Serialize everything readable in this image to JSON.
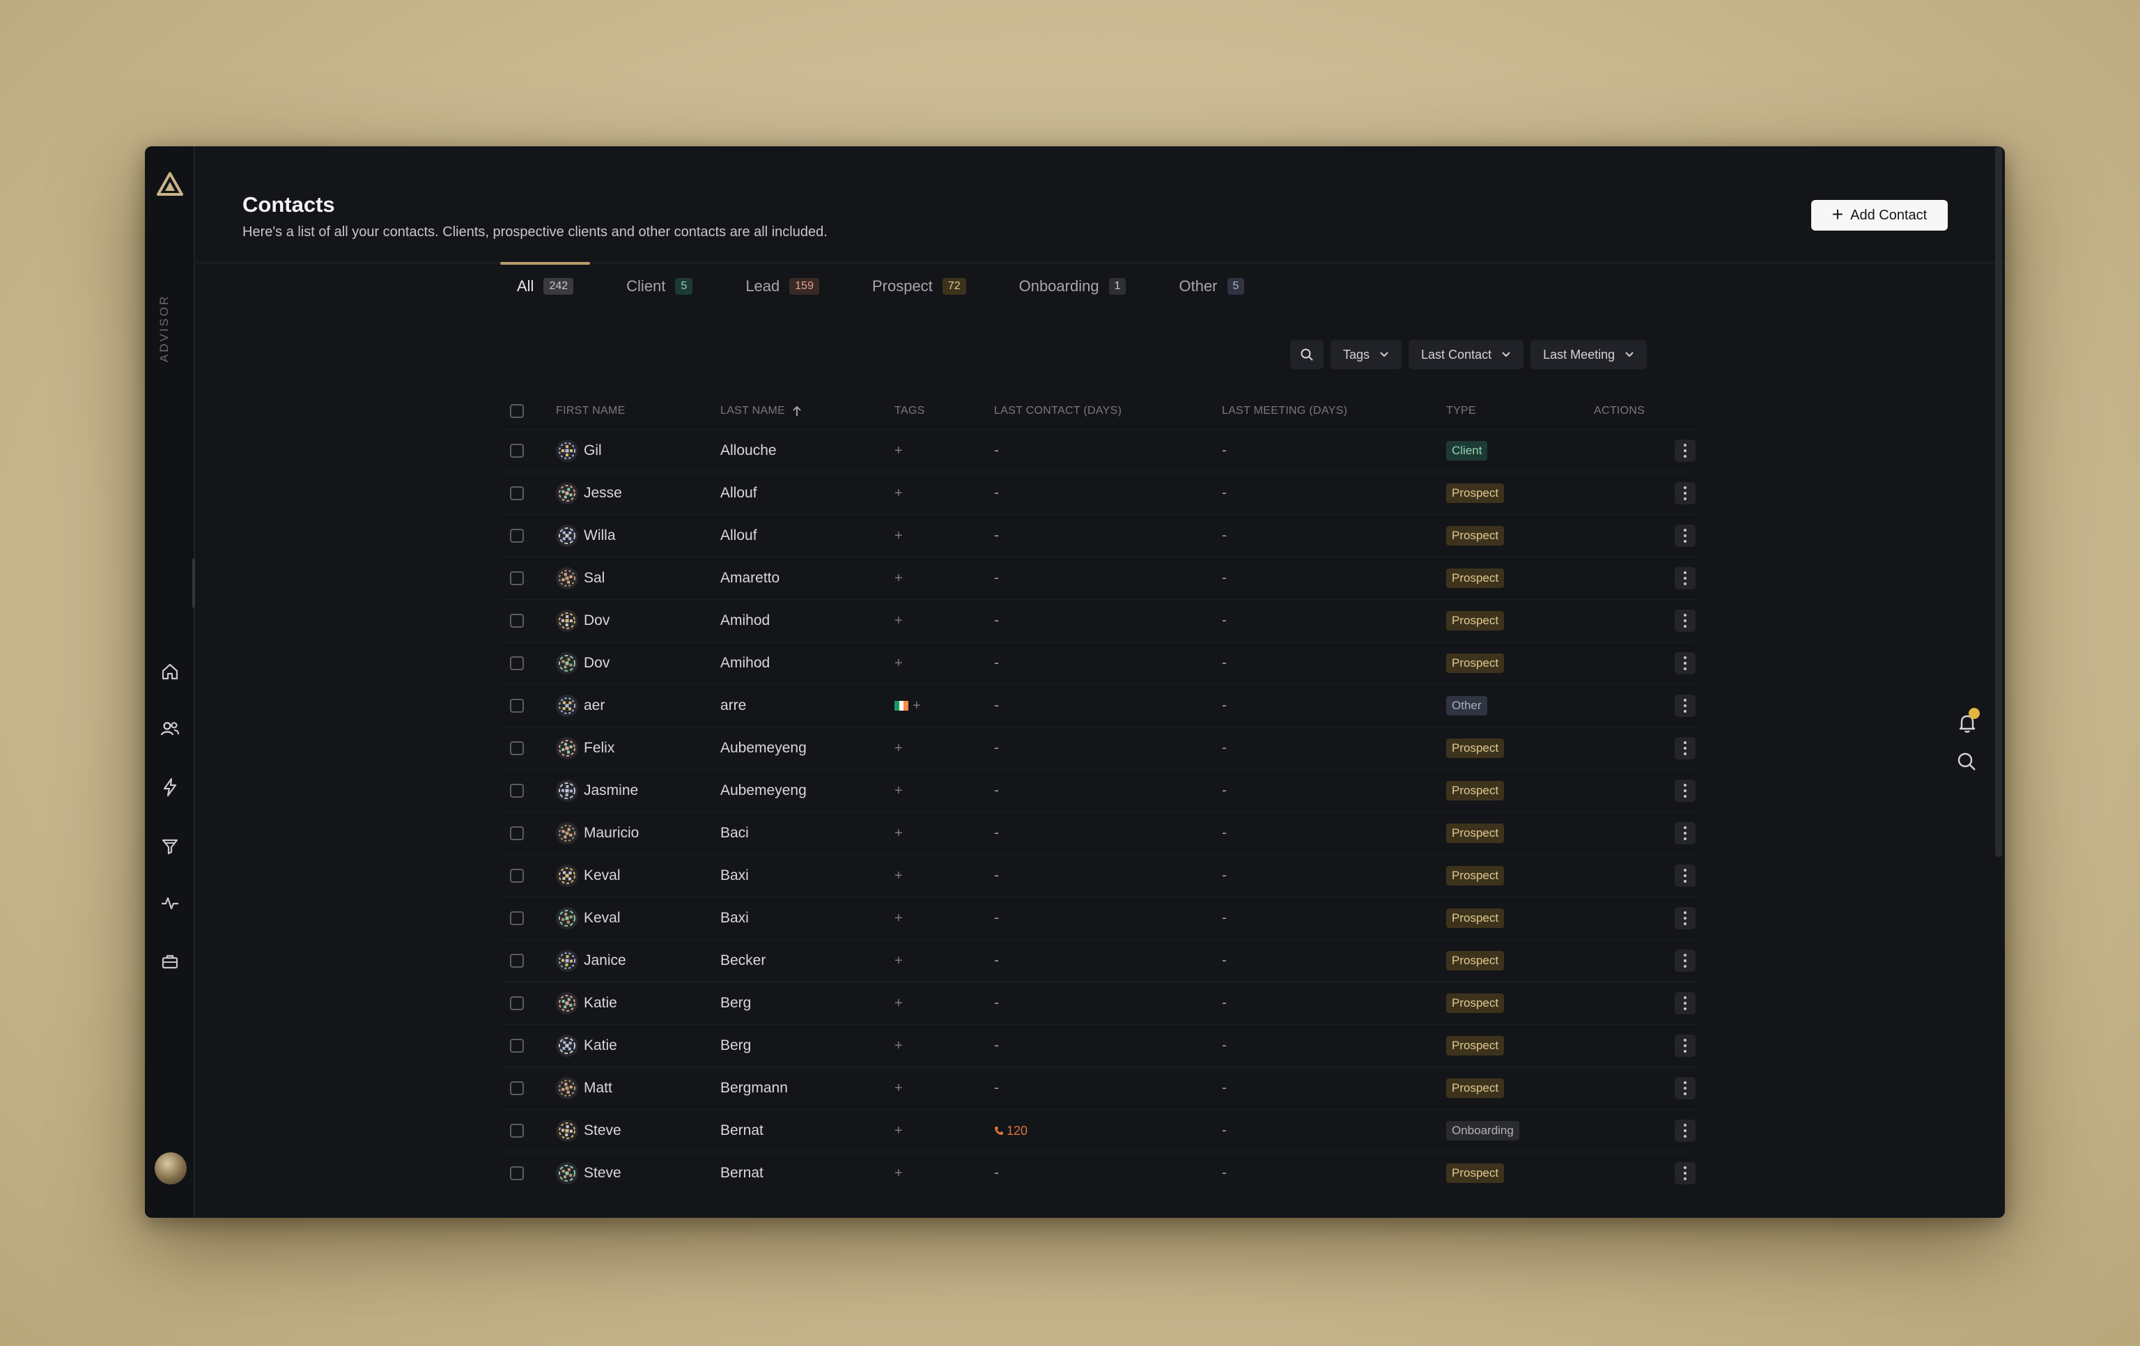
{
  "app": {
    "brand": "ADVISOR"
  },
  "page": {
    "title": "Contacts",
    "subtitle": "Here's a list of all your contacts. Clients, prospective clients and other contacts are all included.",
    "add_button": "Add Contact"
  },
  "tabs": [
    {
      "label": "All",
      "count": "242",
      "active": true
    },
    {
      "label": "Client",
      "count": "5"
    },
    {
      "label": "Lead",
      "count": "159"
    },
    {
      "label": "Prospect",
      "count": "72"
    },
    {
      "label": "Onboarding",
      "count": "1"
    },
    {
      "label": "Other",
      "count": "5"
    }
  ],
  "filters": {
    "tags": "Tags",
    "last_contact": "Last Contact",
    "last_meeting": "Last Meeting"
  },
  "columns": {
    "first_name": "FIRST NAME",
    "last_name": "LAST NAME",
    "tags": "TAGS",
    "last_contact": "LAST CONTACT (DAYS)",
    "last_meeting": "LAST MEETING (DAYS)",
    "type": "TYPE",
    "actions": "ACTIONS"
  },
  "rows": [
    {
      "first": "Gil",
      "last": "Allouche",
      "contact": "-",
      "meeting": "-",
      "type": "Client"
    },
    {
      "first": "Jesse",
      "last": "Allouf",
      "contact": "-",
      "meeting": "-",
      "type": "Prospect"
    },
    {
      "first": "Willa",
      "last": "Allouf",
      "contact": "-",
      "meeting": "-",
      "type": "Prospect"
    },
    {
      "first": "Sal",
      "last": "Amaretto",
      "contact": "-",
      "meeting": "-",
      "type": "Prospect"
    },
    {
      "first": "Dov",
      "last": "Amihod",
      "contact": "-",
      "meeting": "-",
      "type": "Prospect"
    },
    {
      "first": "Dov",
      "last": "Amihod",
      "contact": "-",
      "meeting": "-",
      "type": "Prospect"
    },
    {
      "first": "aer",
      "last": "arre",
      "contact": "-",
      "meeting": "-",
      "type": "Other",
      "flag": true
    },
    {
      "first": "Felix",
      "last": "Aubemeyeng",
      "contact": "-",
      "meeting": "-",
      "type": "Prospect"
    },
    {
      "first": "Jasmine",
      "last": "Aubemeyeng",
      "contact": "-",
      "meeting": "-",
      "type": "Prospect"
    },
    {
      "first": "Mauricio",
      "last": "Baci",
      "contact": "-",
      "meeting": "-",
      "type": "Prospect"
    },
    {
      "first": "Keval",
      "last": "Baxi",
      "contact": "-",
      "meeting": "-",
      "type": "Prospect"
    },
    {
      "first": "Keval",
      "last": "Baxi",
      "contact": "-",
      "meeting": "-",
      "type": "Prospect"
    },
    {
      "first": "Janice",
      "last": "Becker",
      "contact": "-",
      "meeting": "-",
      "type": "Prospect"
    },
    {
      "first": "Katie",
      "last": "Berg",
      "contact": "-",
      "meeting": "-",
      "type": "Prospect"
    },
    {
      "first": "Katie",
      "last": "Berg",
      "contact": "-",
      "meeting": "-",
      "type": "Prospect"
    },
    {
      "first": "Matt",
      "last": "Bergmann",
      "contact": "-",
      "meeting": "-",
      "type": "Prospect"
    },
    {
      "first": "Steve",
      "last": "Bernat",
      "contact": "120",
      "meeting": "-",
      "type": "Onboarding",
      "phone": true
    },
    {
      "first": "Steve",
      "last": "Bernat",
      "contact": "-",
      "meeting": "-",
      "type": "Prospect"
    }
  ],
  "colors": {
    "accent": "#b79b6a",
    "client": "#8fd1ae",
    "prospect": "#e0c98e",
    "notification": "#e0b63d",
    "last_contact_alert": "#d8743f"
  },
  "tab_count_colors": [
    "#3a3b40",
    "#1e3a34",
    "#3a2a26",
    "#3d331d",
    "#2f3036",
    "#2f3440"
  ],
  "tab_count_text": [
    "#c8c8cc",
    "#8fd1ae",
    "#e0a58e",
    "#e0c98e",
    "#c8c8cc",
    "#a7b0c0"
  ]
}
